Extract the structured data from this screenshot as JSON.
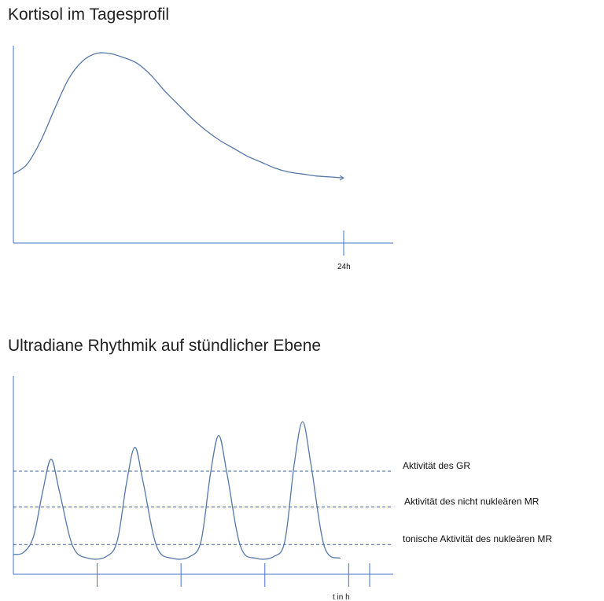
{
  "colors": {
    "curve": "#5577aa",
    "axis": "#4472c4",
    "dashed": "#3a5f9a",
    "text": "#222222"
  },
  "chart_data": [
    {
      "type": "line",
      "title": "Kortisol im Tagesprofil",
      "x_tick_label": "24h",
      "xlim": [
        0,
        26
      ],
      "ylim": [
        0,
        1
      ],
      "grid": false,
      "series": [
        {
          "x": [
            0,
            1,
            2,
            3,
            4,
            5,
            6,
            7,
            8,
            9,
            10,
            11,
            12,
            13,
            14,
            15,
            16,
            17,
            18,
            19,
            20,
            21,
            22,
            23,
            24
          ],
          "values": [
            0.35,
            0.4,
            0.52,
            0.68,
            0.83,
            0.92,
            0.96,
            0.96,
            0.94,
            0.91,
            0.85,
            0.77,
            0.7,
            0.63,
            0.57,
            0.52,
            0.48,
            0.44,
            0.41,
            0.38,
            0.36,
            0.35,
            0.34,
            0.335,
            0.33
          ]
        }
      ]
    },
    {
      "type": "line",
      "title": "Ultradiane Rhythmik auf stündlicher Ebene",
      "x_tick_label": "t in h",
      "xlim": [
        0,
        4.25
      ],
      "ylim": [
        0,
        1
      ],
      "grid": false,
      "x_ticks": [
        1,
        2,
        3,
        4
      ],
      "reference_lines": [
        {
          "label": "Aktivität des GR",
          "y": 0.52
        },
        {
          "label": "Aktivität des nicht nukleären MR",
          "y": 0.34
        },
        {
          "label": "tonische Aktivität des nukleären MR",
          "y": 0.15
        }
      ],
      "series": [
        {
          "peaks": [
            {
              "x": 0.45,
              "y": 0.58
            },
            {
              "x": 1.45,
              "y": 0.64
            },
            {
              "x": 2.45,
              "y": 0.7
            },
            {
              "x": 3.45,
              "y": 0.77
            }
          ],
          "trough_y": 0.08,
          "start_y": 0.1
        }
      ]
    }
  ]
}
